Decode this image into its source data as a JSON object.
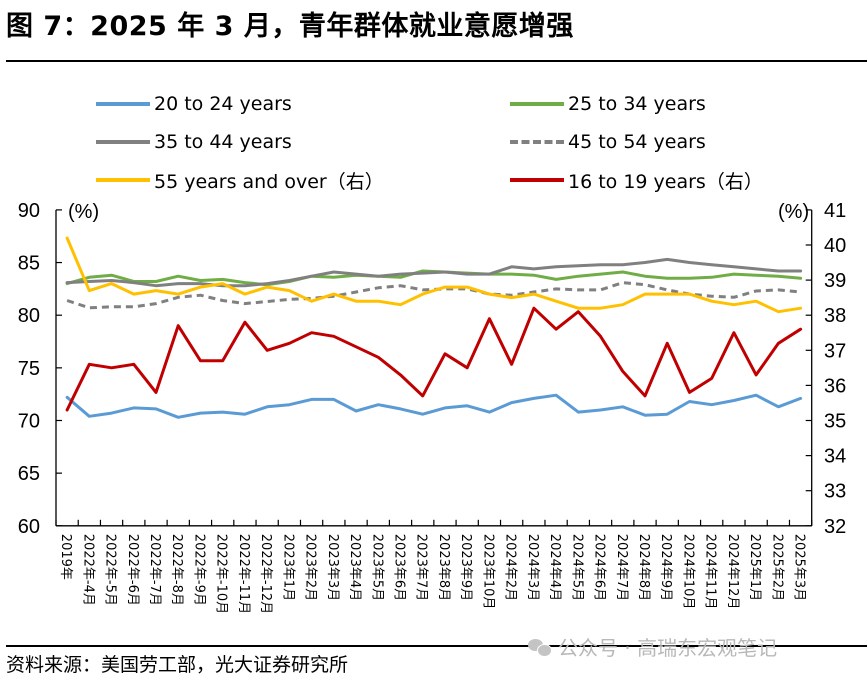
{
  "title": "图 7：2025 年 3 月，青年群体就业意愿增强",
  "source": "资料来源：美国劳工部，光大证券研究所",
  "watermark": "公众号 · 高瑞东宏观笔记",
  "watermark_icon": "wechat-icon",
  "colors": {
    "20 to 24 years": "#5B9BD5",
    "25 to 34 years": "#70AD47",
    "35 to 44 years": "#808080",
    "45 to 54 years": "#808080",
    "55 years and over（右）": "#FFC000",
    "16 to 19 years（右）": "#C00000"
  },
  "legend": [
    {
      "label": "20 to 24 years",
      "style": "solid"
    },
    {
      "label": "25 to 34 years",
      "style": "solid"
    },
    {
      "label": "35 to 44 years",
      "style": "solid"
    },
    {
      "label": "45 to 54 years",
      "style": "dashed"
    },
    {
      "label": "55 years and over（右）",
      "style": "solid"
    },
    {
      "label": "16 to 19 years（右）",
      "style": "solid"
    }
  ],
  "chart_data": {
    "type": "line",
    "title": "图 7：2025 年 3 月，青年群体就业意愿增强",
    "xlabel": "",
    "ylabel": "(%)",
    "y2label": "(%)",
    "ylim": [
      60,
      90
    ],
    "yticks": [
      60,
      65,
      70,
      75,
      80,
      85,
      90
    ],
    "y2lim": [
      32,
      41
    ],
    "y2ticks": [
      32,
      33,
      34,
      35,
      36,
      37,
      38,
      39,
      40,
      41
    ],
    "grid": false,
    "legend_position": "top",
    "categories": [
      "2019年",
      "2022年-4月",
      "2022年-5月",
      "2022年-6月",
      "2022年-7月",
      "2022年-8月",
      "2022年-9月",
      "2022年-10月",
      "2022年-11月",
      "2022年-12月",
      "2023年1月",
      "2023年2月",
      "2023年3月",
      "2023年4月",
      "2023年5月",
      "2023年6月",
      "2023年7月",
      "2023年8月",
      "2023年9月",
      "2023年10月",
      "2024年2月",
      "2024年3月",
      "2024年4月",
      "2024年5月",
      "2024年6月",
      "2024年7月",
      "2024年8月",
      "2024年9月",
      "2024年10月",
      "2024年11月",
      "2024年12月",
      "2025年1月",
      "2025年2月",
      "2025年3月"
    ],
    "series": [
      {
        "name": "20 to 24 years",
        "axis": "left",
        "style": "solid",
        "values": [
          72.2,
          70.4,
          70.7,
          71.2,
          71.1,
          70.3,
          70.7,
          70.8,
          70.6,
          71.3,
          71.5,
          72.0,
          72.0,
          70.9,
          71.5,
          71.1,
          70.6,
          71.2,
          71.4,
          70.8,
          71.7,
          72.1,
          72.4,
          70.8,
          71.0,
          71.3,
          70.5,
          70.6,
          71.8,
          71.5,
          71.9,
          72.4,
          71.3,
          72.1
        ]
      },
      {
        "name": "25 to 34 years",
        "axis": "left",
        "style": "solid",
        "values": [
          83.0,
          83.6,
          83.8,
          83.2,
          83.2,
          83.7,
          83.3,
          83.4,
          83.1,
          82.9,
          83.2,
          83.7,
          83.6,
          83.8,
          83.7,
          83.6,
          84.2,
          84.1,
          84.0,
          83.9,
          83.9,
          83.8,
          83.4,
          83.7,
          83.9,
          84.1,
          83.7,
          83.5,
          83.5,
          83.6,
          83.9,
          83.8,
          83.7,
          83.5
        ]
      },
      {
        "name": "35 to 44 years",
        "axis": "left",
        "style": "solid",
        "values": [
          83.1,
          83.2,
          83.3,
          83.1,
          82.8,
          83.0,
          83.0,
          82.8,
          82.8,
          83.0,
          83.3,
          83.7,
          84.1,
          83.9,
          83.7,
          83.9,
          84.0,
          84.1,
          83.9,
          83.9,
          84.6,
          84.4,
          84.6,
          84.7,
          84.8,
          84.8,
          85.0,
          85.3,
          85.0,
          84.8,
          84.6,
          84.4,
          84.2,
          84.2
        ]
      },
      {
        "name": "45 to 54 years",
        "axis": "left",
        "style": "dashed",
        "values": [
          81.4,
          80.7,
          80.8,
          80.8,
          81.1,
          81.7,
          81.9,
          81.4,
          81.1,
          81.3,
          81.5,
          81.6,
          81.8,
          82.2,
          82.6,
          82.8,
          82.4,
          82.5,
          82.5,
          82.0,
          81.9,
          82.2,
          82.5,
          82.4,
          82.4,
          83.1,
          82.9,
          82.4,
          82.0,
          81.8,
          81.7,
          82.3,
          82.4,
          82.2
        ]
      },
      {
        "name": "55 years and over（右）",
        "axis": "right",
        "style": "solid",
        "values": [
          40.2,
          38.7,
          38.9,
          38.6,
          38.7,
          38.6,
          38.8,
          38.9,
          38.6,
          38.8,
          38.7,
          38.4,
          38.6,
          38.4,
          38.4,
          38.3,
          38.6,
          38.8,
          38.8,
          38.6,
          38.5,
          38.6,
          38.4,
          38.2,
          38.2,
          38.3,
          38.6,
          38.6,
          38.6,
          38.4,
          38.3,
          38.4,
          38.1,
          38.2
        ]
      },
      {
        "name": "16 to 19 years（右）",
        "axis": "right",
        "style": "solid",
        "values": [
          35.3,
          36.6,
          36.5,
          36.6,
          35.8,
          37.7,
          36.7,
          36.7,
          37.8,
          37.0,
          37.2,
          37.5,
          37.4,
          37.1,
          36.8,
          36.3,
          35.7,
          36.9,
          36.5,
          37.9,
          36.6,
          38.2,
          37.6,
          38.1,
          37.4,
          36.4,
          35.7,
          37.2,
          35.8,
          36.2,
          37.5,
          36.3,
          37.2,
          37.6
        ]
      }
    ]
  }
}
